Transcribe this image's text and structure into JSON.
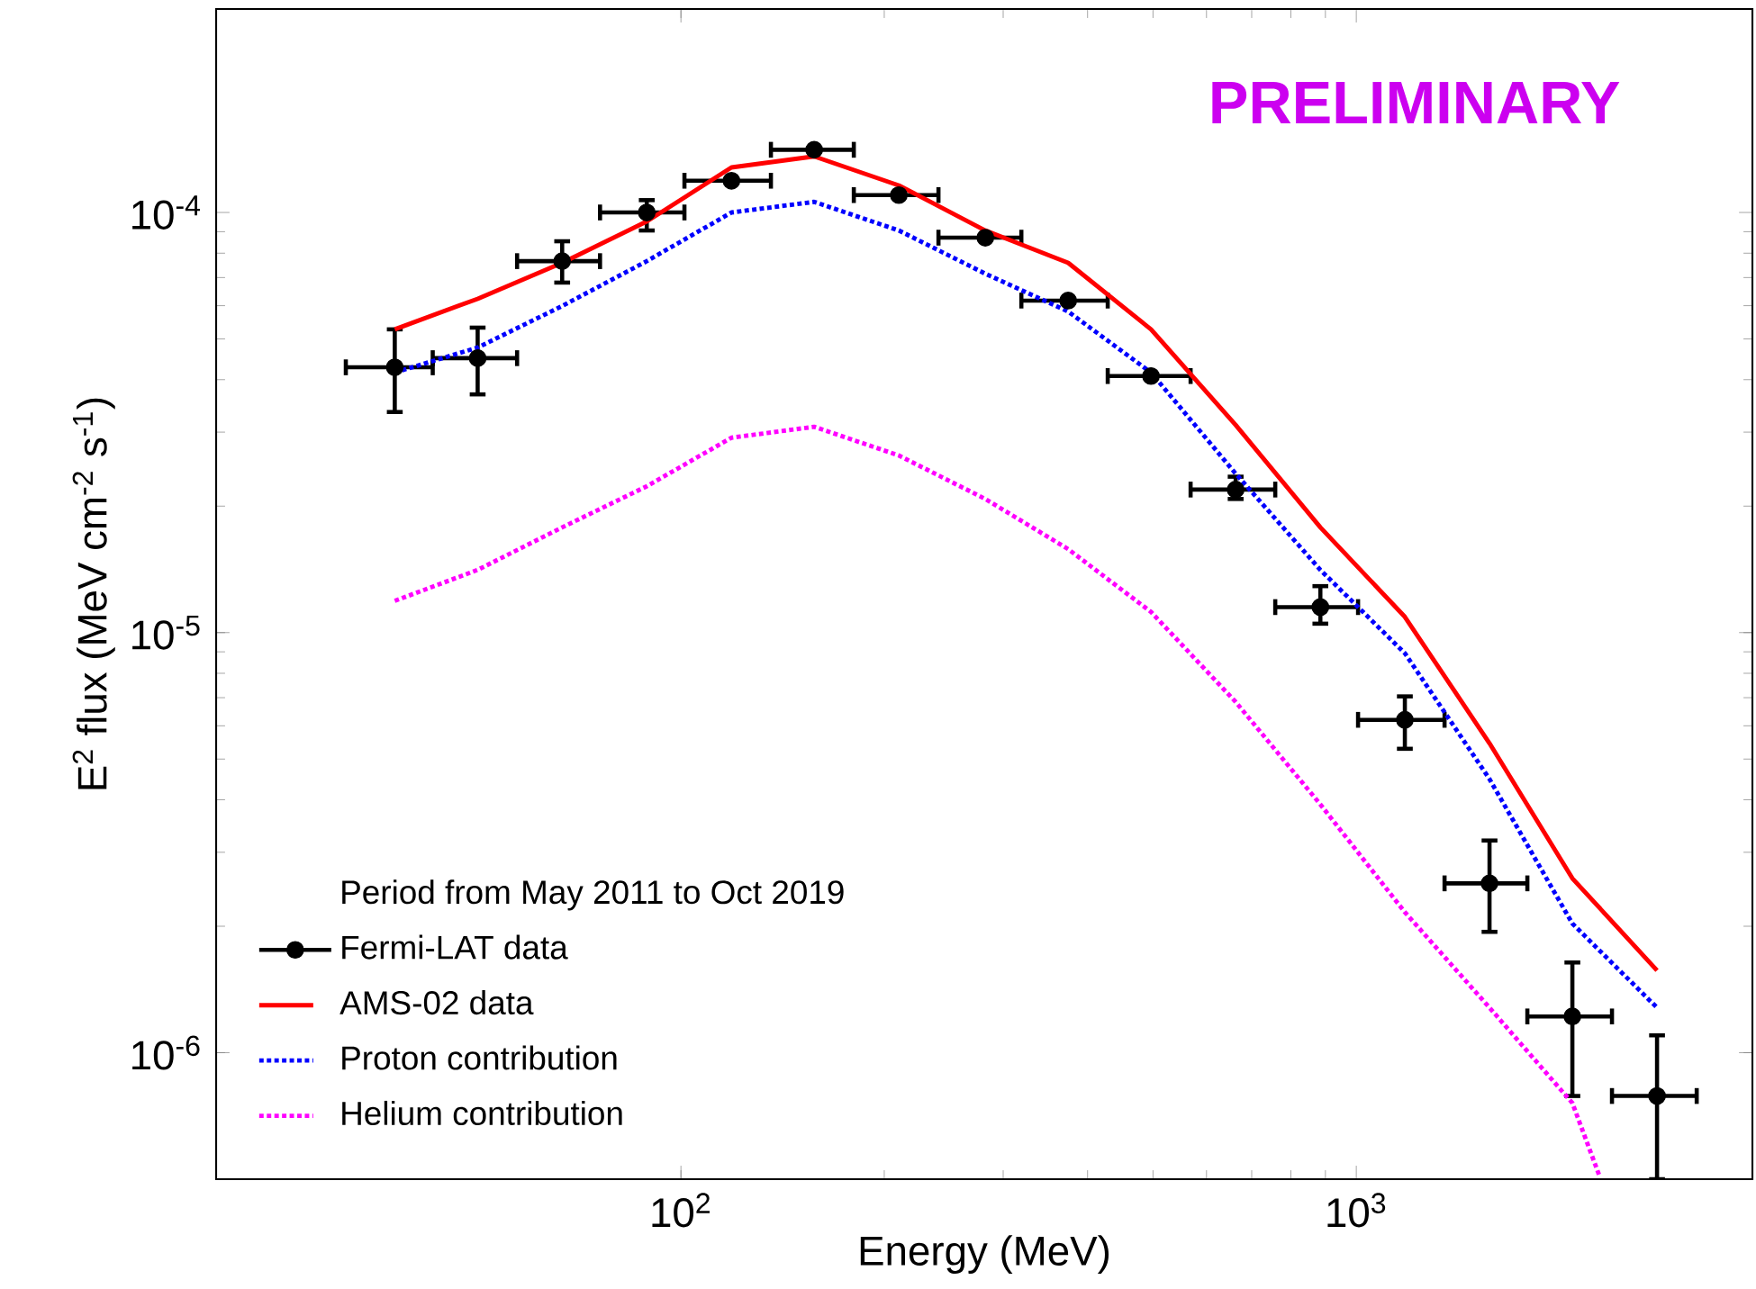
{
  "chart_data": {
    "type": "line",
    "xlabel": "Energy (MeV)",
    "ylabel": "E$^{2}$ flux (MeV cm$^{-2}$ s$^{-1}$)",
    "legend_title": "Period from May 2011 to Oct 2019",
    "annotations": [
      "PRELIMINARY"
    ],
    "log": "xy",
    "legend": "bottom left",
    "xlim": [
      20.5,
      3860
    ],
    "ylim": [
      5e-07,
      0.000305
    ],
    "xticks": [
      {
        "value": 100,
        "label": "10$^{2}$"
      },
      {
        "value": 1000,
        "label": "10$^{3}$"
      }
    ],
    "yticks": [
      {
        "value": 1e-06,
        "label": "10$^{-6}$"
      },
      {
        "value": 1e-05,
        "label": "10$^{-5}$"
      },
      {
        "value": 0.0001,
        "label": "10$^{-4}$"
      }
    ],
    "series": [
      {
        "name": "Fermi-LAT data",
        "type": "scatter",
        "marker": "circle",
        "color": "#000000",
        "x": [
          37.7,
          50.0,
          66.7,
          89.0,
          118.8,
          157.5,
          210.2,
          282.3,
          374.5,
          496.6,
          662.8,
          884.7,
          1180,
          1575,
          2089,
          2788
        ],
        "values": [
          4.28e-05,
          4.5e-05,
          7.66e-05,
          0.0001,
          0.000119,
          0.000141,
          0.00011,
          8.71e-05,
          6.17e-05,
          4.08e-05,
          2.19e-05,
          1.15e-05,
          6.2e-06,
          2.53e-06,
          1.22e-06,
          7.89e-07
        ],
        "errors": [
          [
            3.35e-05,
            5.27e-05
          ],
          [
            3.69e-05,
            5.32e-05
          ],
          [
            6.81e-05,
            8.54e-05
          ],
          [
            9.06e-05,
            0.000107
          ],
          null,
          null,
          null,
          null,
          null,
          null,
          [
            2.08e-05,
            2.35e-05
          ],
          [
            1.05e-05,
            1.29e-05
          ],
          [
            5.29e-06,
            7.05e-06
          ],
          [
            1.94e-06,
            3.2e-06
          ],
          [
            7.89e-07,
            1.64e-06
          ],
          [
            5e-07,
            1.1e-06
          ]
        ],
        "xerrors": [
          [
            31.9,
            42.9
          ],
          [
            42.9,
            57.2
          ],
          [
            57.2,
            75.9
          ],
          [
            75.9,
            101.2
          ],
          [
            101.2,
            135.9
          ],
          [
            135.9,
            180.3
          ],
          [
            180.3,
            240.6
          ],
          [
            240.6,
            319.2
          ],
          [
            319.2,
            428.5
          ],
          [
            428.5,
            568.4
          ],
          [
            568.4,
            758.6
          ],
          [
            758.6,
            1006
          ],
          [
            1006,
            1351
          ],
          [
            1351,
            1792
          ],
          [
            1792,
            2391
          ],
          [
            2391,
            3192
          ]
        ]
      },
      {
        "name": "AMS-02 data",
        "line_style": "solid",
        "color": "#ff0000",
        "x": [
          37.7,
          50.0,
          66.7,
          89.0,
          118.8,
          157.5,
          210.2,
          282.3,
          374.5,
          496.6,
          662.8,
          884.7,
          1180,
          1575,
          2089,
          2788
        ],
        "values": [
          5.27e-05,
          6.23e-05,
          7.59e-05,
          9.52e-05,
          0.000128,
          0.000136,
          0.000116,
          9.06e-05,
          7.59e-05,
          5.27e-05,
          3.12e-05,
          1.78e-05,
          1.09e-05,
          5.45e-06,
          2.6e-06,
          1.57e-06
        ]
      },
      {
        "name": "Proton contribution",
        "line_style": "dotted",
        "color": "#0000ff",
        "x": [
          37.7,
          50.0,
          66.7,
          89.0,
          118.8,
          157.5,
          210.2,
          282.3,
          374.5,
          496.6,
          662.8,
          884.7,
          1180,
          1575,
          2089,
          2788
        ],
        "values": [
          4.16e-05,
          4.77e-05,
          5.99e-05,
          7.66e-05,
          0.0001,
          0.000106,
          9.06e-05,
          7.15e-05,
          5.81e-05,
          4.16e-05,
          2.39e-05,
          1.41e-05,
          8.93e-06,
          4.48e-06,
          2.03e-06,
          1.28e-06
        ]
      },
      {
        "name": "Helium contribution",
        "line_style": "dotted",
        "color": "#ff00ff",
        "x": [
          37.7,
          50.0,
          66.7,
          89.0,
          118.8,
          157.5,
          210.2,
          282.3,
          374.5,
          496.6,
          662.8,
          884.7,
          1180,
          1575,
          2089,
          2290
        ],
        "values": [
          1.19e-05,
          1.41e-05,
          1.78e-05,
          2.23e-05,
          2.91e-05,
          3.09e-05,
          2.64e-05,
          2.08e-05,
          1.58e-05,
          1.12e-05,
          6.84e-06,
          3.9e-06,
          2.16e-06,
          1.28e-06,
          7.59e-07,
          5.1e-07
        ]
      }
    ]
  }
}
